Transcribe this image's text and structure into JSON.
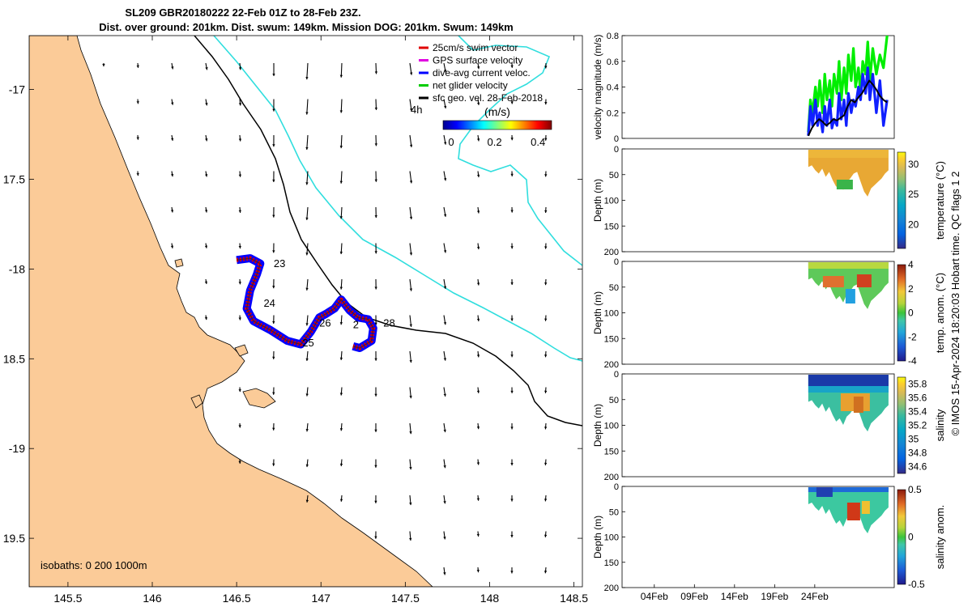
{
  "figure": {
    "title_line1": "SL209 GBR20180222 22-Feb 01Z to 28-Feb 23Z.",
    "title_line2": "Dist. over ground: 201km. Dist. swum: 149km. Mission DOG: 201km. Swum: 149km",
    "credit": "© IMOS 15-Apr-2024 18:20:03 Hobart time. QC flags 1  2"
  },
  "chart_data": [
    {
      "type": "map",
      "lon_ticks": [
        "145.5",
        "146",
        "146.5",
        "147",
        "147.5",
        "148",
        "148.5"
      ],
      "lat_ticks": [
        "-17",
        "17.5",
        "-18",
        "18.5",
        "-19",
        "19.5"
      ],
      "xlim": [
        145.27,
        148.55
      ],
      "ylim": [
        -19.77,
        -16.7
      ],
      "legend": {
        "items": [
          {
            "label": "25cm/s swim vector",
            "color": "#e00000"
          },
          {
            "label": "GPS surface velocity",
            "color": "#e000e0"
          },
          {
            "label": "dive-avg current veloc.",
            "color": "#0000ff"
          },
          {
            "label": "net glider velocity",
            "color": "#00cc00"
          },
          {
            "label": "sfc geo. vel. 28-Feb-2018",
            "color": "#000000"
          }
        ],
        "duration_label": "4h",
        "colorbar_title": "(m/s)",
        "colorbar_ticks": [
          "0",
          "0.2",
          "0.4"
        ],
        "colorbar_range": [
          0,
          0.5
        ]
      },
      "isobaths_label": "isobaths: 0   200  1000m",
      "day_labels": [
        {
          "text": "23",
          "lon": 146.72,
          "lat": -17.99
        },
        {
          "text": "24",
          "lon": 146.66,
          "lat": -18.21
        },
        {
          "text": "25",
          "lon": 146.89,
          "lat": -18.43
        },
        {
          "text": "26",
          "lon": 146.99,
          "lat": -18.32
        },
        {
          "text": "2",
          "lon": 147.19,
          "lat": -18.33
        },
        {
          "text": "28",
          "lon": 147.37,
          "lat": -18.32
        }
      ],
      "track": [
        [
          146.5,
          -17.95
        ],
        [
          146.58,
          -17.94
        ],
        [
          146.64,
          -17.97
        ],
        [
          146.62,
          -18.03
        ],
        [
          146.58,
          -18.12
        ],
        [
          146.56,
          -18.22
        ],
        [
          146.6,
          -18.29
        ],
        [
          146.7,
          -18.34
        ],
        [
          146.8,
          -18.4
        ],
        [
          146.88,
          -18.42
        ],
        [
          146.94,
          -18.35
        ],
        [
          146.99,
          -18.27
        ],
        [
          147.03,
          -18.25
        ],
        [
          147.08,
          -18.22
        ],
        [
          147.12,
          -18.17
        ],
        [
          147.17,
          -18.23
        ],
        [
          147.22,
          -18.27
        ],
        [
          147.28,
          -18.28
        ],
        [
          147.31,
          -18.33
        ],
        [
          147.3,
          -18.4
        ],
        [
          147.23,
          -18.44
        ],
        [
          147.19,
          -18.43
        ]
      ]
    },
    {
      "type": "line",
      "ylabel": "velocity magnitude (m/s)",
      "ylim": [
        0,
        0.8
      ],
      "yticks": [
        "0",
        "0.2",
        "0.4",
        "0.6",
        "0.8"
      ],
      "series": [
        {
          "color": "#00ee00",
          "x": [
            26.0,
            26.3,
            26.6,
            27.0,
            27.3,
            27.6,
            28.0,
            28.3,
            28.6,
            29.0,
            29.3,
            29.6,
            30.0,
            30.3,
            30.6,
            31.0,
            31.3,
            31.6,
            32.0,
            32.3,
            32.6,
            33.0,
            33.3,
            33.6,
            34.0,
            34.3,
            34.6,
            35.0,
            35.5,
            36.0,
            36.5,
            37.0
          ],
          "values": [
            0.05,
            0.3,
            0.2,
            0.4,
            0.25,
            0.45,
            0.2,
            0.5,
            0.3,
            0.45,
            0.25,
            0.5,
            0.35,
            0.6,
            0.3,
            0.55,
            0.35,
            0.65,
            0.45,
            0.7,
            0.4,
            0.55,
            0.35,
            0.6,
            0.5,
            0.75,
            0.45,
            0.7,
            0.5,
            0.65,
            0.55,
            0.8
          ]
        },
        {
          "color": "#1020ff",
          "x": [
            26.0,
            26.3,
            26.6,
            27.0,
            27.3,
            27.6,
            28.0,
            28.3,
            28.6,
            29.0,
            29.3,
            29.6,
            30.0,
            30.3,
            30.6,
            31.0,
            31.3,
            31.6,
            32.0,
            32.3,
            32.6,
            33.0,
            33.3,
            33.6,
            34.0,
            34.3,
            34.6,
            35.0,
            35.5,
            36.0,
            36.5,
            37.0
          ],
          "values": [
            0.02,
            0.25,
            0.1,
            0.3,
            0.1,
            0.2,
            0.05,
            0.25,
            0.1,
            0.3,
            0.08,
            0.15,
            0.1,
            0.35,
            0.15,
            0.3,
            0.1,
            0.35,
            0.2,
            0.3,
            0.25,
            0.4,
            0.3,
            0.5,
            0.35,
            0.55,
            0.3,
            0.5,
            0.2,
            0.45,
            0.1,
            0.3
          ]
        },
        {
          "color": "#000000",
          "x": [
            26.0,
            26.5,
            27.0,
            27.5,
            28.0,
            28.5,
            29.0,
            29.5,
            30.0,
            30.5,
            31.0,
            31.5,
            32.0,
            32.5,
            33.0,
            33.5,
            34.0,
            34.5,
            35.0,
            35.5,
            36.0,
            36.5,
            37.0
          ],
          "values": [
            0.02,
            0.08,
            0.12,
            0.15,
            0.13,
            0.1,
            0.12,
            0.15,
            0.14,
            0.16,
            0.18,
            0.25,
            0.3,
            0.28,
            0.32,
            0.35,
            0.4,
            0.45,
            0.42,
            0.38,
            0.33,
            0.3,
            0.28
          ]
        }
      ]
    },
    {
      "type": "heatmap",
      "ylabel": "Depth (m)",
      "clabel": "temperature (°C)",
      "yticks": [
        "0",
        "50",
        "100",
        "150",
        "200"
      ],
      "ctick_values": [
        20,
        25,
        30
      ],
      "ctick_labels": [
        "20",
        "25",
        "30"
      ],
      "clim": [
        16,
        32
      ]
    },
    {
      "type": "heatmap",
      "ylabel": "Depth (m)",
      "clabel": "temp. anom. (°C)",
      "yticks": [
        "0",
        "50",
        "100",
        "150",
        "200"
      ],
      "ctick_values": [
        -4,
        -2,
        0,
        2,
        4
      ],
      "ctick_labels": [
        "-4",
        "-2",
        "0",
        "2",
        "4"
      ],
      "clim": [
        -4,
        4
      ]
    },
    {
      "type": "heatmap",
      "ylabel": "Depth (m)",
      "clabel": "salinity",
      "yticks": [
        "0",
        "50",
        "100",
        "150",
        "200"
      ],
      "ctick_values": [
        34.6,
        34.8,
        35,
        35.2,
        35.4,
        35.6,
        35.8
      ],
      "ctick_labels": [
        "34.6",
        "34.8",
        "35",
        "35.2",
        "35.4",
        "35.6",
        "35.8"
      ],
      "clim": [
        34.5,
        35.9
      ]
    },
    {
      "type": "heatmap",
      "ylabel": "Depth (m)",
      "clabel": "salinity anom.",
      "yticks": [
        "0",
        "50",
        "100",
        "150",
        "200"
      ],
      "ctick_values": [
        -0.5,
        0,
        0.5
      ],
      "ctick_labels": [
        "-0.5",
        "0",
        "0.5"
      ],
      "clim": [
        -0.5,
        0.5
      ],
      "xticks": [
        "04Feb",
        "09Feb",
        "14Feb",
        "19Feb",
        "24Feb"
      ]
    }
  ]
}
